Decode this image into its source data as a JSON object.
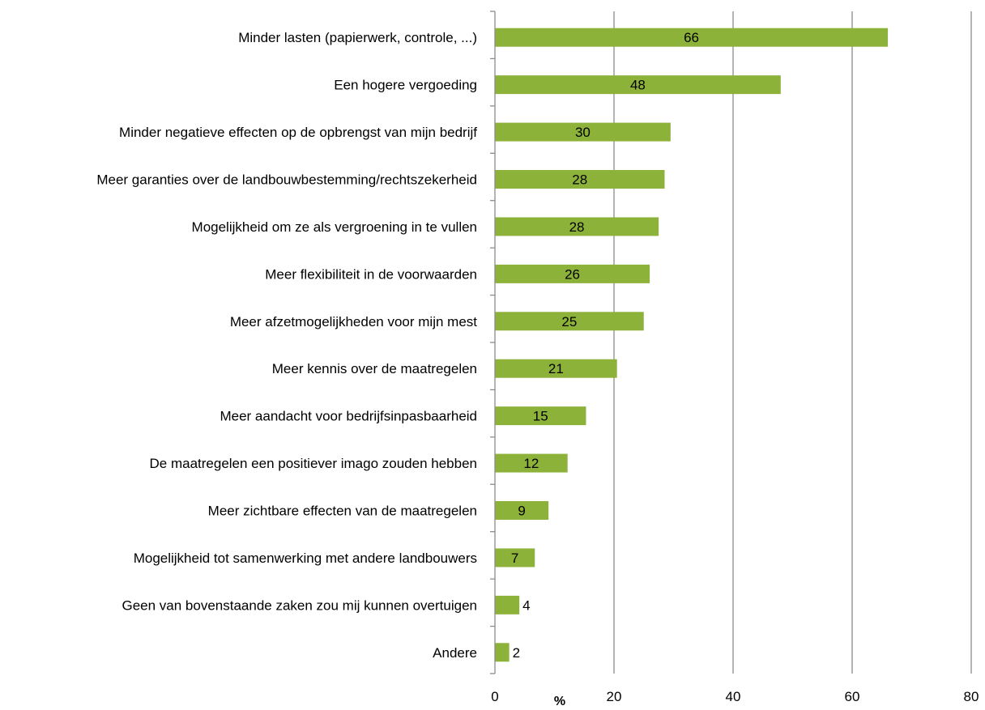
{
  "chart_data": {
    "type": "bar",
    "orientation": "horizontal",
    "categories": [
      "Minder lasten (papierwerk, controle, ...)",
      "Een hogere vergoeding",
      "Minder negatieve effecten op de opbrengst van mijn bedrijf",
      "Meer garanties over de landbouwbestemming/rechtszekerheid",
      "Mogelijkheid om ze als vergroening in te vullen",
      "Meer flexibiliteit in de voorwaarden",
      "Meer afzetmogelijkheden voor mijn mest",
      "Meer kennis over de maatregelen",
      "Meer aandacht voor bedrijfsinpasbaarheid",
      "De maatregelen een positiever imago zouden hebben",
      "Meer zichtbare effecten van de maatregelen",
      "Mogelijkheid tot  samenwerking met andere landbouwers",
      "Geen van bovenstaande zaken zou mij kunnen overtuigen",
      "Andere"
    ],
    "values": [
      66,
      48,
      29.5,
      28.5,
      27.5,
      26,
      25,
      20.5,
      15.3,
      12.2,
      9,
      6.7,
      4.1,
      2.4
    ],
    "data_labels": [
      "66",
      "48",
      "30",
      "28",
      "28",
      "26",
      "25",
      "21",
      "15",
      "12",
      "9",
      "7",
      "4",
      "2"
    ],
    "xlabel": "%",
    "ylabel": "",
    "xlim": [
      0,
      80
    ],
    "xticks": [
      "0",
      "20",
      "40",
      "60",
      "80"
    ],
    "grid": "vertical",
    "legend": "none",
    "bar_color": "#8db23a"
  }
}
